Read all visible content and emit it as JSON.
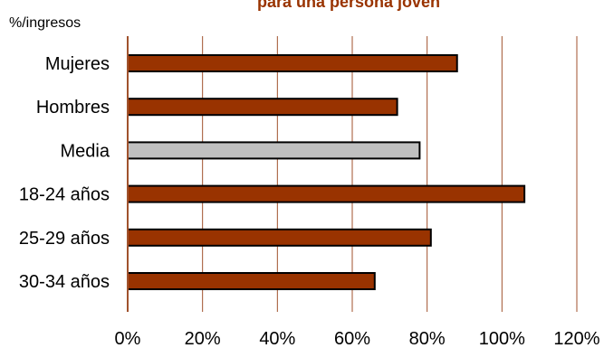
{
  "chart_data": {
    "type": "bar",
    "orientation": "horizontal",
    "title": "para una persona joven",
    "unit_label": "%/ingresos",
    "categories": [
      "Mujeres",
      "Hombres",
      "Media",
      "18-24 años",
      "25-29 años",
      "30-34 años"
    ],
    "values": [
      88,
      72,
      78,
      106,
      81,
      66
    ],
    "highlight_category": "Media",
    "xlim": [
      0,
      120
    ],
    "xticks": [
      0,
      20,
      40,
      60,
      80,
      100,
      120
    ],
    "xtick_labels": [
      "0%",
      "20%",
      "40%",
      "60%",
      "80%",
      "100%",
      "120%"
    ],
    "grid": "vertical",
    "colors": {
      "bar": "#993300",
      "highlight": "#c0c0c0",
      "gridline": "#a0522d",
      "title": "#993300"
    }
  }
}
